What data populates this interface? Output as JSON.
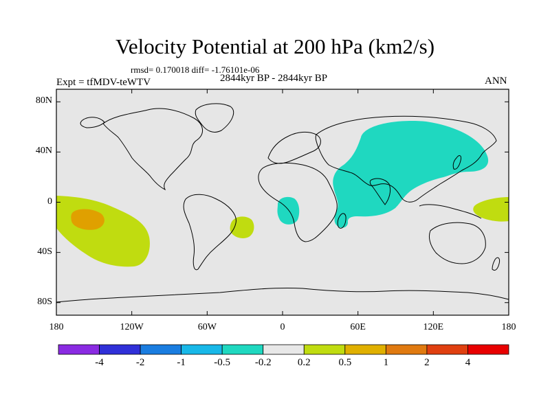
{
  "title": "Velocity Potential at 200 hPa (km2/s)",
  "stats": "rmsd= 0.170018 diff= -1.76101e-06",
  "experiment": "Expt = tfMDV-teWTV",
  "period": "2844kyr BP - 2844kyr BP",
  "season": "ANN",
  "lat_labels": [
    "80N",
    "40N",
    "0",
    "40S",
    "80S"
  ],
  "lon_labels": [
    "180",
    "120W",
    "60W",
    "0",
    "60E",
    "120E",
    "180"
  ],
  "colorbar": {
    "labels": [
      "-4",
      "-2",
      "-1",
      "-0.5",
      "-0.2",
      "0.2",
      "0.5",
      "1",
      "2",
      "4"
    ],
    "colors": [
      "#8a2be2",
      "#3030d8",
      "#1a7de0",
      "#18b8e8",
      "#1fd8c0",
      "#e8e8e8",
      "#c0dc10",
      "#e0b000",
      "#e07a10",
      "#e04010",
      "#e80000"
    ]
  },
  "map_colors": {
    "background": "#e6e6e6",
    "negative_region": "#1fd8c0",
    "positive_region": "#c0dc10",
    "positive_strong": "#e0a000"
  }
}
